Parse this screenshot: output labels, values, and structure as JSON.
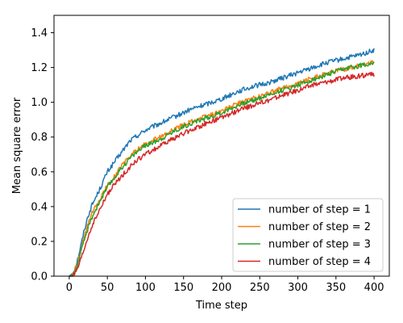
{
  "chart_data": {
    "type": "line",
    "title": "",
    "xlabel": "Time step",
    "ylabel": "Mean square error",
    "xlim": [
      -20,
      420
    ],
    "ylim": [
      0,
      1.5
    ],
    "xticks": [
      0,
      50,
      100,
      150,
      200,
      250,
      300,
      350,
      400
    ],
    "yticks": [
      0.0,
      0.2,
      0.4,
      0.6,
      0.8,
      1.0,
      1.2,
      1.4
    ],
    "ytick_labels": [
      "0.0",
      "0.2",
      "0.4",
      "0.6",
      "0.8",
      "1.0",
      "1.2",
      "1.4"
    ],
    "grid": false,
    "legend_position": "bottom-right",
    "x": [
      0,
      5,
      10,
      15,
      20,
      25,
      30,
      40,
      50,
      60,
      70,
      80,
      90,
      100,
      120,
      140,
      160,
      180,
      200,
      220,
      240,
      260,
      280,
      300,
      320,
      340,
      360,
      380,
      400
    ],
    "series": [
      {
        "name": "number of step = 1",
        "color": "#1f77b4",
        "values": [
          0.0,
          0.02,
          0.08,
          0.17,
          0.27,
          0.35,
          0.41,
          0.5,
          0.6,
          0.66,
          0.72,
          0.78,
          0.81,
          0.84,
          0.88,
          0.92,
          0.96,
          0.99,
          1.02,
          1.06,
          1.09,
          1.11,
          1.14,
          1.17,
          1.2,
          1.23,
          1.25,
          1.27,
          1.3
        ]
      },
      {
        "name": "number of step = 2",
        "color": "#ff7f0e",
        "values": [
          0.0,
          0.01,
          0.06,
          0.14,
          0.23,
          0.3,
          0.36,
          0.44,
          0.52,
          0.58,
          0.64,
          0.69,
          0.73,
          0.76,
          0.8,
          0.85,
          0.89,
          0.92,
          0.95,
          0.99,
          1.02,
          1.05,
          1.08,
          1.11,
          1.14,
          1.17,
          1.19,
          1.21,
          1.23
        ]
      },
      {
        "name": "number of step = 3",
        "color": "#2ca02c",
        "values": [
          0.0,
          0.01,
          0.05,
          0.13,
          0.21,
          0.28,
          0.34,
          0.43,
          0.51,
          0.57,
          0.63,
          0.68,
          0.72,
          0.75,
          0.79,
          0.84,
          0.88,
          0.91,
          0.94,
          0.98,
          1.01,
          1.04,
          1.07,
          1.1,
          1.13,
          1.16,
          1.19,
          1.21,
          1.23
        ]
      },
      {
        "name": "number of step = 4",
        "color": "#d62728",
        "values": [
          0.0,
          0.0,
          0.03,
          0.09,
          0.16,
          0.23,
          0.29,
          0.38,
          0.47,
          0.53,
          0.58,
          0.63,
          0.67,
          0.7,
          0.75,
          0.8,
          0.84,
          0.88,
          0.91,
          0.95,
          0.98,
          1.01,
          1.04,
          1.07,
          1.1,
          1.12,
          1.14,
          1.15,
          1.16
        ]
      }
    ]
  }
}
